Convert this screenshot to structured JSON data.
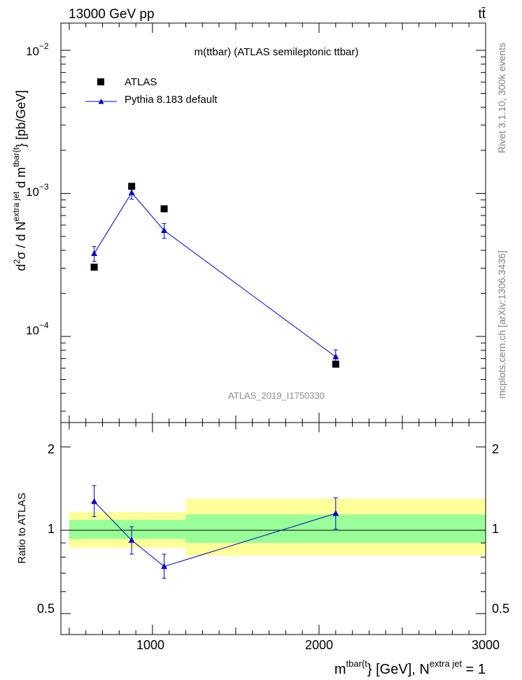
{
  "header": {
    "energy": "13000 GeV pp",
    "process": "tt̄",
    "side_top": "Rivet 3.1.10,  300k events",
    "side_bottom": "mcplots.cern.ch [arXiv:1306.3436]"
  },
  "colors": {
    "atlas": "#000000",
    "pythia": "#0000cc",
    "band_inner": "#99ff99",
    "band_outer": "#ffff99"
  },
  "chart_data": [
    {
      "type": "scatter",
      "title": "m(ttbar) (ATLAS semileptonic ttbar)",
      "analysis": "ATLAS_2019_I1750330",
      "yscale": "log",
      "ylim": [
        2.5e-05,
        0.0155
      ],
      "xlim": [
        450,
        3000
      ],
      "ylabel": {
        "main": "d",
        "sup1": "2",
        "sigma": "σ / d N",
        "sup2": "extra jet",
        "mid": " d m",
        "sup3": "tbar{t",
        "tail": "} [pb/GeV]"
      },
      "ytick_labels": [
        {
          "value": 0.01,
          "base": "10",
          "exp": "−2"
        },
        {
          "value": 0.001,
          "base": "10",
          "exp": "−3"
        },
        {
          "value": 0.0001,
          "base": "10",
          "exp": "−4"
        }
      ],
      "legend": [
        {
          "name": "ATLAS",
          "marker": "square"
        },
        {
          "name": "Pythia 8.183 default",
          "marker": "triangle"
        }
      ],
      "series": [
        {
          "name": "ATLAS",
          "x": [
            650,
            875,
            1070,
            2100
          ],
          "y": [
            0.000305,
            0.00112,
            0.00078,
            6.4e-05
          ]
        },
        {
          "name": "Pythia 8.183 default",
          "x": [
            650,
            875,
            1070,
            2100
          ],
          "y": [
            0.00038,
            0.00101,
            0.00055,
            7.2e-05
          ],
          "yerr": [
            4.5e-05,
            0.0001,
            6.5e-05,
            8.5e-06
          ]
        }
      ]
    },
    {
      "type": "line",
      "ylabel": "Ratio to ATLAS",
      "yscale": "log",
      "ylim": [
        0.42,
        2.45
      ],
      "xlim": [
        450,
        3000
      ],
      "xlabel": {
        "main": "m",
        "sup1": "tbar{t",
        "mid": "} [GeV], N",
        "sup2": "extra jet",
        "tail": " = 1"
      },
      "xtick_labels": [
        {
          "value": 1000,
          "label": "1000"
        },
        {
          "value": 2000,
          "label": "2000"
        },
        {
          "value": 3000,
          "label": "3000"
        }
      ],
      "ytick_labels": [
        {
          "value": 0.5,
          "label": "0.5"
        },
        {
          "value": 1,
          "label": "1"
        },
        {
          "value": 2,
          "label": "2"
        }
      ],
      "bands": [
        {
          "x0": 500,
          "x1": 900,
          "outer": [
            0.865,
            1.165
          ],
          "inner": [
            0.93,
            1.09
          ]
        },
        {
          "x0": 900,
          "x1": 1200,
          "outer": [
            0.865,
            1.165
          ],
          "inner": [
            0.93,
            1.09
          ]
        },
        {
          "x0": 1200,
          "x1": 3000,
          "outer": [
            0.81,
            1.3
          ],
          "inner": [
            0.9,
            1.14
          ]
        }
      ],
      "series": [
        {
          "name": "Pythia 8.183 default",
          "x": [
            650,
            875,
            1070,
            2100
          ],
          "y": [
            1.27,
            0.92,
            0.74,
            1.15
          ],
          "yerr_lo": [
            0.15,
            0.1,
            0.07,
            0.14
          ],
          "yerr_hi": [
            0.18,
            0.11,
            0.08,
            0.16
          ]
        }
      ]
    }
  ]
}
